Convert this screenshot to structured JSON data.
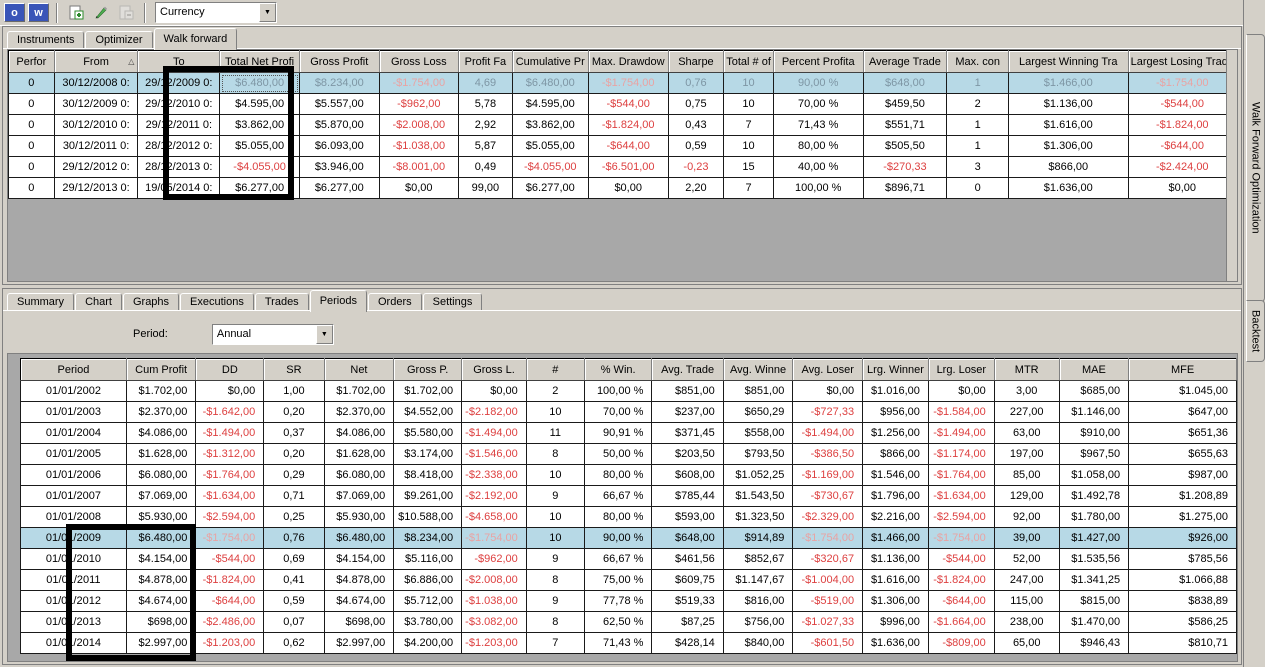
{
  "toolbar": {
    "workspace_buttons": [
      "o",
      "w"
    ],
    "new_label": "new",
    "edit_label": "edit",
    "remove_label": "remove",
    "instrument_selector_value": "Currency"
  },
  "colors": {
    "chrome": "#d4d0c8",
    "selected_row": "#b7d9e6",
    "negative": "#dd4040",
    "negative_selected": "#e9a3a3",
    "muted_selected": "#7e96a4",
    "grid_empty": "#a8a8a8",
    "toolbar_button_blue": "#3a55b8"
  },
  "wfo_panel": {
    "side_tab": "Walk Forward Optimization",
    "tabs": [
      "Instruments",
      "Optimizer",
      "Walk forward"
    ],
    "active_tab": "Walk forward",
    "table": {
      "columns": [
        "Perfor",
        "From",
        "To",
        "Total Net Profi",
        "Gross Profit",
        "Gross Loss",
        "Profit Fa",
        "Cumulative Pr",
        "Max. Drawdow",
        "Sharpe",
        "Total # of",
        "Percent Profita",
        "Average Trade",
        "Max. con",
        "Largest Winning Tra",
        "Largest Losing Trade"
      ],
      "sort_column": "From",
      "selected_row_index": 0,
      "rows": [
        [
          "0",
          "30/12/2008 0:",
          "29/12/2009 0:",
          "$6.480,00",
          "$8.234,00",
          "-$1.754,00",
          "4,69",
          "$6.480,00",
          "-$1.754,00",
          "0,76",
          "10",
          "90,00 %",
          "$648,00",
          "1",
          "$1.466,00",
          "-$1.754,00"
        ],
        [
          "0",
          "30/12/2009 0:",
          "29/12/2010 0:",
          "$4.595,00",
          "$5.557,00",
          "-$962,00",
          "5,78",
          "$4.595,00",
          "-$544,00",
          "0,75",
          "10",
          "70,00 %",
          "$459,50",
          "2",
          "$1.136,00",
          "-$544,00"
        ],
        [
          "0",
          "30/12/2010 0:",
          "29/12/2011 0:",
          "$3.862,00",
          "$5.870,00",
          "-$2.008,00",
          "2,92",
          "$3.862,00",
          "-$1.824,00",
          "0,43",
          "7",
          "71,43 %",
          "$551,71",
          "1",
          "$1.616,00",
          "-$1.824,00"
        ],
        [
          "0",
          "30/12/2011 0:",
          "28/12/2012 0:",
          "$5.055,00",
          "$6.093,00",
          "-$1.038,00",
          "5,87",
          "$5.055,00",
          "-$644,00",
          "0,59",
          "10",
          "80,00 %",
          "$505,50",
          "1",
          "$1.306,00",
          "-$644,00"
        ],
        [
          "0",
          "29/12/2012 0:",
          "28/12/2013 0:",
          "-$4.055,00",
          "$3.946,00",
          "-$8.001,00",
          "0,49",
          "-$4.055,00",
          "-$6.501,00",
          "-0,23",
          "15",
          "40,00 %",
          "-$270,33",
          "3",
          "$866,00",
          "-$2.424,00"
        ],
        [
          "0",
          "29/12/2013 0:",
          "19/05/2014 0:",
          "$6.277,00",
          "$6.277,00",
          "$0,00",
          "99,00",
          "$6.277,00",
          "$0,00",
          "2,20",
          "7",
          "100,00 %",
          "$896,71",
          "0",
          "$1.636,00",
          "$0,00"
        ]
      ]
    }
  },
  "backtest_panel": {
    "side_tab": "Backtest",
    "tabs": [
      "Summary",
      "Chart",
      "Graphs",
      "Executions",
      "Trades",
      "Periods",
      "Orders",
      "Settings"
    ],
    "active_tab": "Periods",
    "period_label": "Period:",
    "period_value": "Annual",
    "table": {
      "columns": [
        "Period",
        "Cum Profit",
        "DD",
        "SR",
        "Net",
        "Gross P.",
        "Gross L.",
        "#",
        "% Win.",
        "Avg. Trade",
        "Avg. Winne",
        "Avg. Loser",
        "Lrg. Winner",
        "Lrg. Loser",
        "MTR",
        "MAE",
        "MFE"
      ],
      "selected_row_index": 7,
      "rows": [
        [
          "01/01/2002",
          "$1.702,00",
          "$0,00",
          "1,00",
          "$1.702,00",
          "$1.702,00",
          "$0,00",
          "2",
          "100,00 %",
          "$851,00",
          "$851,00",
          "$0,00",
          "$1.016,00",
          "$0,00",
          "3,00",
          "$685,00",
          "$1.045,00"
        ],
        [
          "01/01/2003",
          "$2.370,00",
          "-$1.642,00",
          "0,20",
          "$2.370,00",
          "$4.552,00",
          "-$2.182,00",
          "10",
          "70,00 %",
          "$237,00",
          "$650,29",
          "-$727,33",
          "$956,00",
          "-$1.584,00",
          "227,00",
          "$1.146,00",
          "$647,00"
        ],
        [
          "01/01/2004",
          "$4.086,00",
          "-$1.494,00",
          "0,37",
          "$4.086,00",
          "$5.580,00",
          "-$1.494,00",
          "11",
          "90,91 %",
          "$371,45",
          "$558,00",
          "-$1.494,00",
          "$1.256,00",
          "-$1.494,00",
          "63,00",
          "$910,00",
          "$651,36"
        ],
        [
          "01/01/2005",
          "$1.628,00",
          "-$1.312,00",
          "0,20",
          "$1.628,00",
          "$3.174,00",
          "-$1.546,00",
          "8",
          "50,00 %",
          "$203,50",
          "$793,50",
          "-$386,50",
          "$866,00",
          "-$1.174,00",
          "197,00",
          "$967,50",
          "$655,63"
        ],
        [
          "01/01/2006",
          "$6.080,00",
          "-$1.764,00",
          "0,29",
          "$6.080,00",
          "$8.418,00",
          "-$2.338,00",
          "10",
          "80,00 %",
          "$608,00",
          "$1.052,25",
          "-$1.169,00",
          "$1.546,00",
          "-$1.764,00",
          "85,00",
          "$1.058,00",
          "$987,00"
        ],
        [
          "01/01/2007",
          "$7.069,00",
          "-$1.634,00",
          "0,71",
          "$7.069,00",
          "$9.261,00",
          "-$2.192,00",
          "9",
          "66,67 %",
          "$785,44",
          "$1.543,50",
          "-$730,67",
          "$1.796,00",
          "-$1.634,00",
          "129,00",
          "$1.492,78",
          "$1.208,89"
        ],
        [
          "01/01/2008",
          "$5.930,00",
          "-$2.594,00",
          "0,25",
          "$5.930,00",
          "$10.588,00",
          "-$4.658,00",
          "10",
          "80,00 %",
          "$593,00",
          "$1.323,50",
          "-$2.329,00",
          "$2.216,00",
          "-$2.594,00",
          "92,00",
          "$1.780,00",
          "$1.275,00"
        ],
        [
          "01/01/2009",
          "$6.480,00",
          "-$1.754,00",
          "0,76",
          "$6.480,00",
          "$8.234,00",
          "-$1.754,00",
          "10",
          "90,00 %",
          "$648,00",
          "$914,89",
          "-$1.754,00",
          "$1.466,00",
          "-$1.754,00",
          "39,00",
          "$1.427,00",
          "$926,00"
        ],
        [
          "01/01/2010",
          "$4.154,00",
          "-$544,00",
          "0,69",
          "$4.154,00",
          "$5.116,00",
          "-$962,00",
          "9",
          "66,67 %",
          "$461,56",
          "$852,67",
          "-$320,67",
          "$1.136,00",
          "-$544,00",
          "52,00",
          "$1.535,56",
          "$785,56"
        ],
        [
          "01/01/2011",
          "$4.878,00",
          "-$1.824,00",
          "0,41",
          "$4.878,00",
          "$6.886,00",
          "-$2.008,00",
          "8",
          "75,00 %",
          "$609,75",
          "$1.147,67",
          "-$1.004,00",
          "$1.616,00",
          "-$1.824,00",
          "247,00",
          "$1.341,25",
          "$1.066,88"
        ],
        [
          "01/01/2012",
          "$4.674,00",
          "-$644,00",
          "0,59",
          "$4.674,00",
          "$5.712,00",
          "-$1.038,00",
          "9",
          "77,78 %",
          "$519,33",
          "$816,00",
          "-$519,00",
          "$1.306,00",
          "-$644,00",
          "115,00",
          "$815,00",
          "$838,89"
        ],
        [
          "01/01/2013",
          "$698,00",
          "-$2.486,00",
          "0,07",
          "$698,00",
          "$3.780,00",
          "-$3.082,00",
          "8",
          "62,50 %",
          "$87,25",
          "$756,00",
          "-$1.027,33",
          "$996,00",
          "-$1.664,00",
          "238,00",
          "$1.470,00",
          "$586,25"
        ],
        [
          "01/01/2014",
          "$2.997,00",
          "-$1.203,00",
          "0,62",
          "$2.997,00",
          "$4.200,00",
          "-$1.203,00",
          "7",
          "71,43 %",
          "$428,14",
          "$840,00",
          "-$601,50",
          "$1.636,00",
          "-$809,00",
          "65,00",
          "$946,43",
          "$810,71"
        ]
      ]
    }
  }
}
